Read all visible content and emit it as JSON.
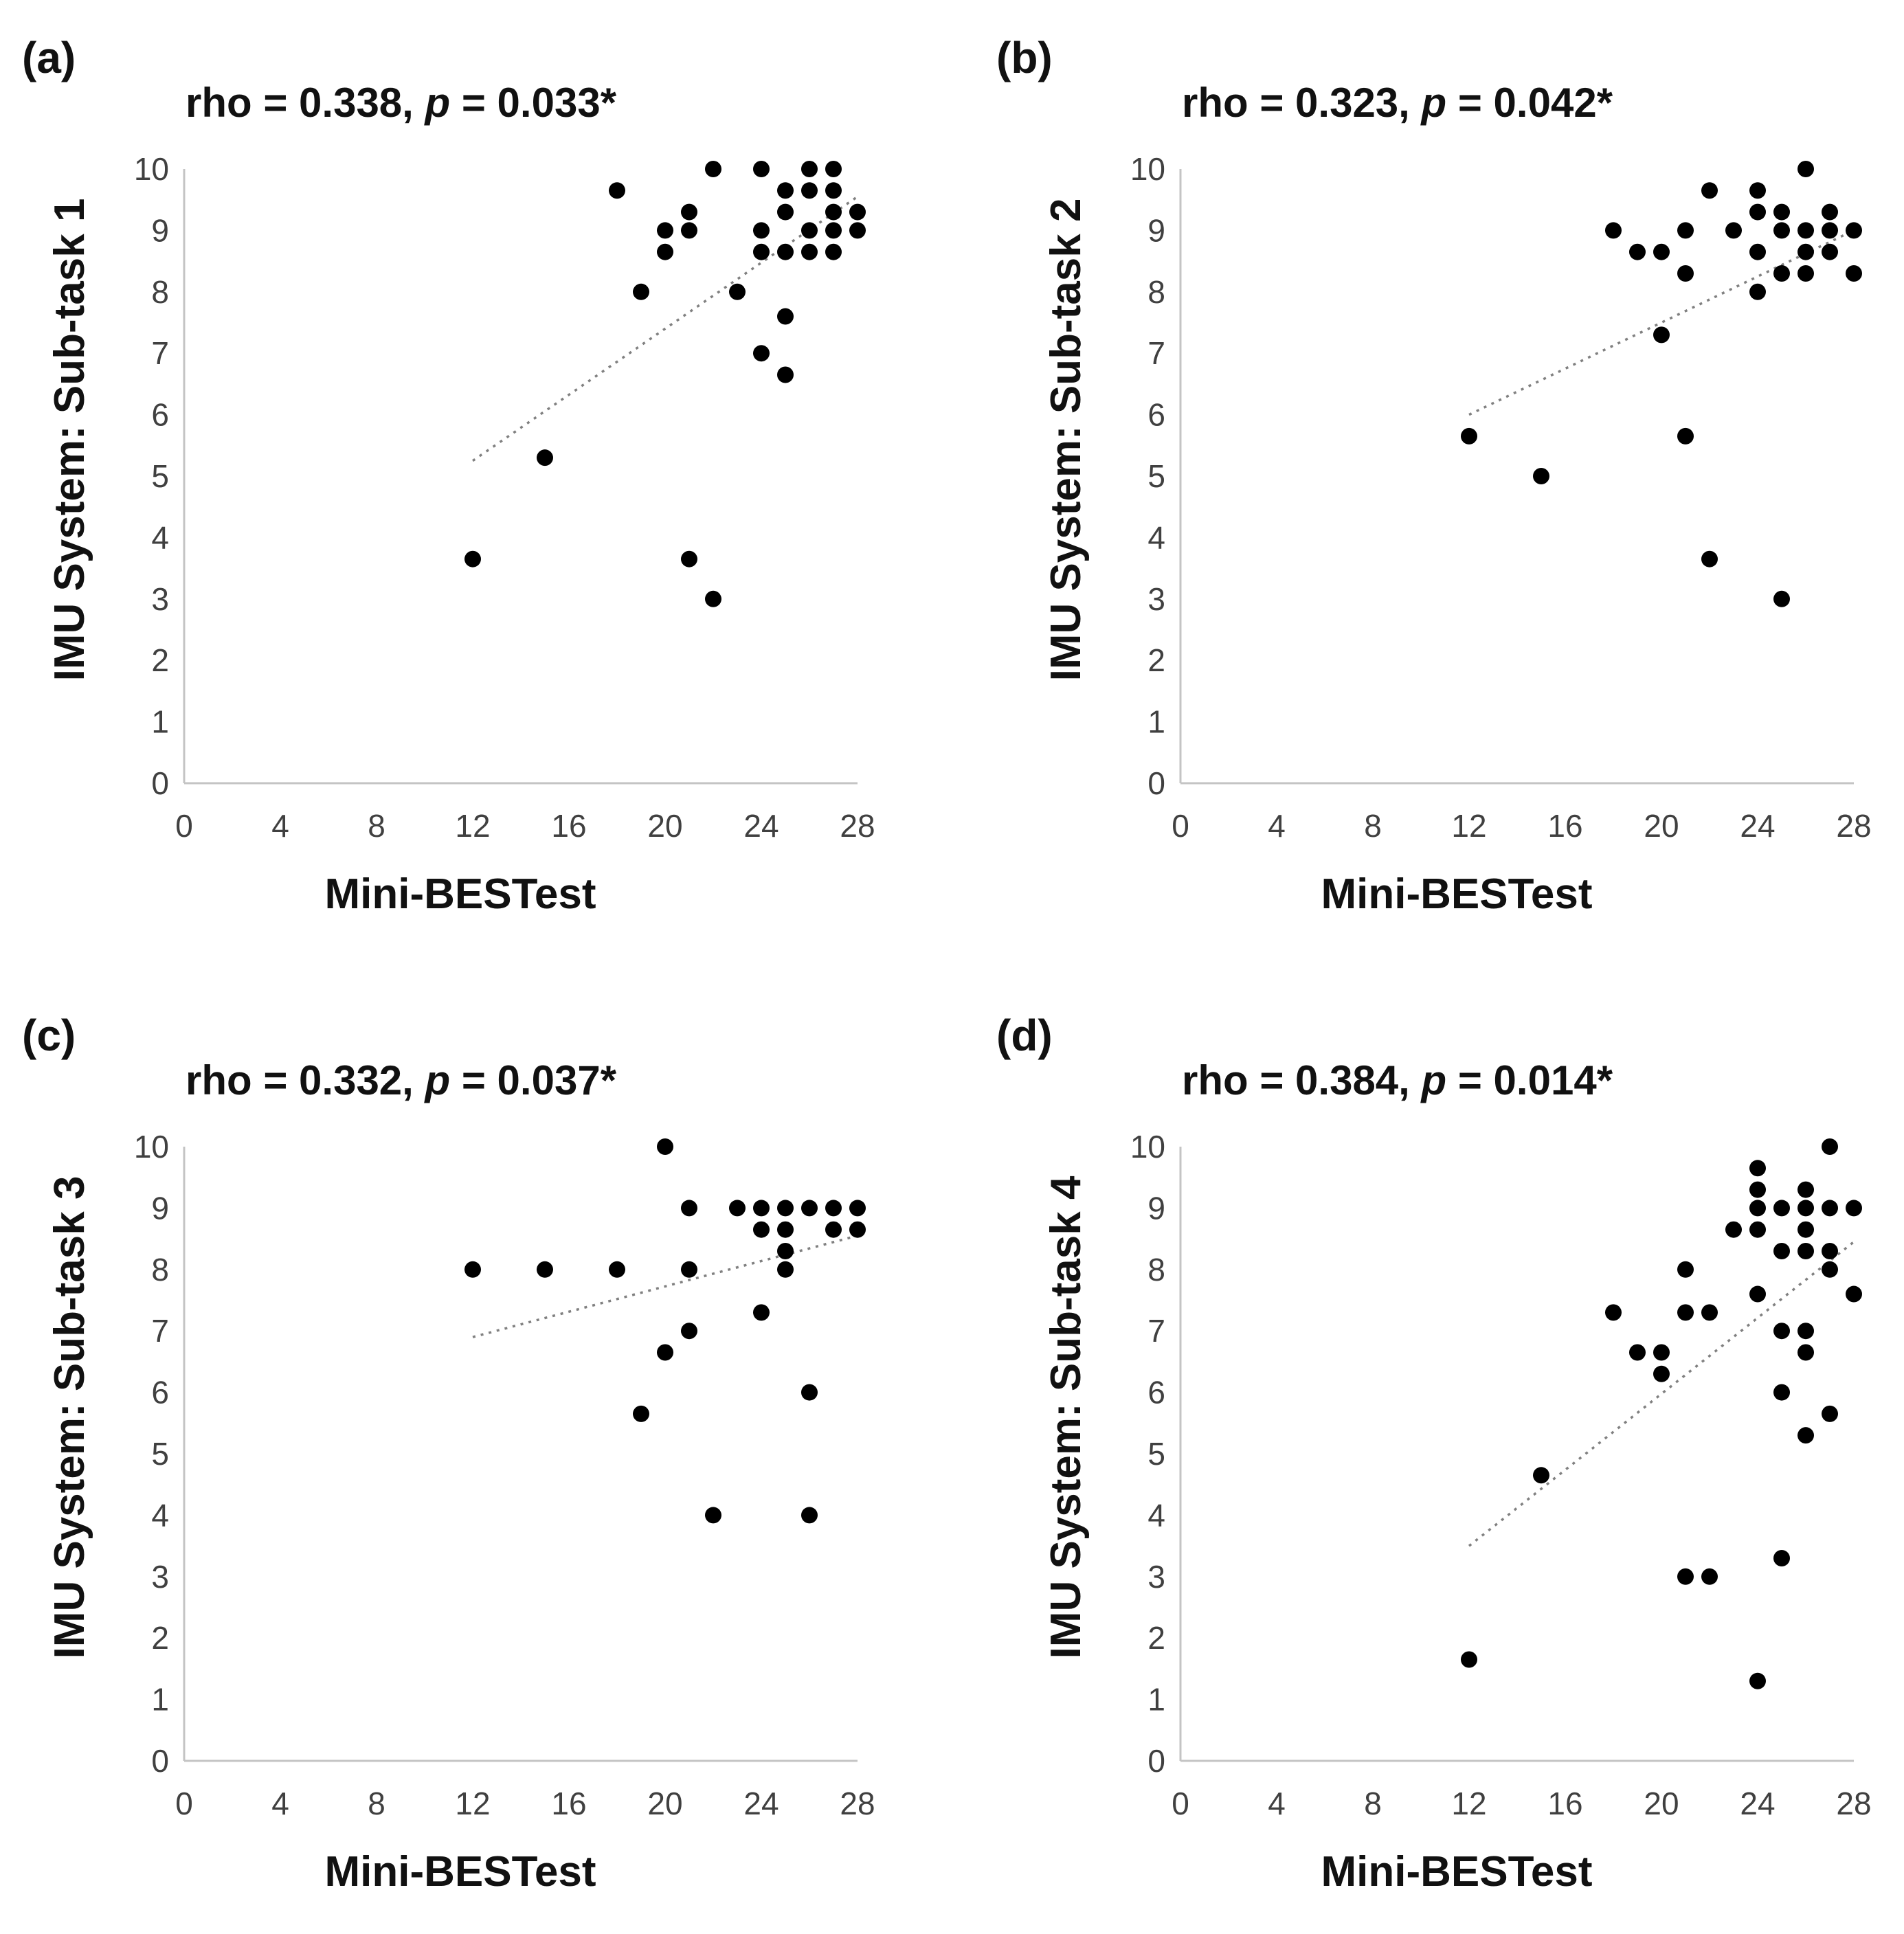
{
  "chart_data": [
    {
      "panel": "(a)",
      "type": "scatter",
      "stat": {
        "rho_text": "rho = 0.338, ",
        "p_symbol": "p",
        "p_text": " = 0.033*"
      },
      "xlabel": "Mini-BESTest",
      "ylabel": "IMU System: Sub-task 1",
      "xlim": [
        0,
        28
      ],
      "ylim": [
        0,
        10
      ],
      "xticks": [
        0,
        4,
        8,
        12,
        16,
        20,
        24,
        28
      ],
      "yticks": [
        0,
        1,
        2,
        3,
        4,
        5,
        6,
        7,
        8,
        9,
        10
      ],
      "trendline": {
        "x": [
          12,
          28
        ],
        "y": [
          5.25,
          9.55
        ]
      },
      "points": [
        [
          12,
          3.65
        ],
        [
          15,
          5.3
        ],
        [
          18,
          9.65
        ],
        [
          19,
          8.0
        ],
        [
          20,
          9.0
        ],
        [
          20,
          8.65
        ],
        [
          21,
          9.3
        ],
        [
          21,
          9.0
        ],
        [
          21,
          3.65
        ],
        [
          22,
          10.0
        ],
        [
          22,
          3.0
        ],
        [
          23,
          8.0
        ],
        [
          24,
          10.0
        ],
        [
          24,
          9.0
        ],
        [
          24,
          8.65
        ],
        [
          24,
          7.0
        ],
        [
          25,
          9.65
        ],
        [
          25,
          9.3
        ],
        [
          25,
          8.65
        ],
        [
          25,
          7.6
        ],
        [
          25,
          6.65
        ],
        [
          26,
          10.0
        ],
        [
          26,
          9.65
        ],
        [
          26,
          9.0
        ],
        [
          26,
          8.65
        ],
        [
          27,
          10.0
        ],
        [
          27,
          9.65
        ],
        [
          27,
          9.3
        ],
        [
          27,
          9.0
        ],
        [
          27,
          8.65
        ],
        [
          28,
          9.3
        ],
        [
          28,
          9.0
        ]
      ]
    },
    {
      "panel": "(b)",
      "type": "scatter",
      "stat": {
        "rho_text": "rho = 0.323, ",
        "p_symbol": "p",
        "p_text": " = 0.042*"
      },
      "xlabel": "Mini-BESTest",
      "ylabel": "IMU System: Sub-task 2",
      "xlim": [
        0,
        28
      ],
      "ylim": [
        0,
        10
      ],
      "xticks": [
        0,
        4,
        8,
        12,
        16,
        20,
        24,
        28
      ],
      "yticks": [
        0,
        1,
        2,
        3,
        4,
        5,
        6,
        7,
        8,
        9,
        10
      ],
      "trendline": {
        "x": [
          12,
          28
        ],
        "y": [
          6.0,
          9.0
        ]
      },
      "points": [
        [
          12,
          5.65
        ],
        [
          15,
          5.0
        ],
        [
          18,
          9.0
        ],
        [
          19,
          8.65
        ],
        [
          20,
          8.65
        ],
        [
          20,
          7.3
        ],
        [
          21,
          9.0
        ],
        [
          21,
          8.3
        ],
        [
          21,
          5.65
        ],
        [
          22,
          9.65
        ],
        [
          22,
          3.65
        ],
        [
          23,
          9.0
        ],
        [
          24,
          9.65
        ],
        [
          24,
          9.3
        ],
        [
          24,
          8.65
        ],
        [
          24,
          8.0
        ],
        [
          25,
          9.3
        ],
        [
          25,
          9.0
        ],
        [
          25,
          8.3
        ],
        [
          25,
          3.0
        ],
        [
          26,
          10.0
        ],
        [
          26,
          9.0
        ],
        [
          26,
          8.65
        ],
        [
          26,
          8.3
        ],
        [
          27,
          9.3
        ],
        [
          27,
          9.0
        ],
        [
          27,
          8.65
        ],
        [
          28,
          9.0
        ],
        [
          28,
          8.3
        ]
      ]
    },
    {
      "panel": "(c)",
      "type": "scatter",
      "stat": {
        "rho_text": "rho = 0.332, ",
        "p_symbol": "p",
        "p_text": " = 0.037*"
      },
      "xlabel": "Mini-BESTest",
      "ylabel": "IMU System: Sub-task 3",
      "xlim": [
        0,
        28
      ],
      "ylim": [
        0,
        10
      ],
      "xticks": [
        0,
        4,
        8,
        12,
        16,
        20,
        24,
        28
      ],
      "yticks": [
        0,
        1,
        2,
        3,
        4,
        5,
        6,
        7,
        8,
        9,
        10
      ],
      "trendline": {
        "x": [
          12,
          28
        ],
        "y": [
          6.9,
          8.55
        ]
      },
      "points": [
        [
          12,
          8.0
        ],
        [
          15,
          8.0
        ],
        [
          18,
          8.0
        ],
        [
          19,
          5.65
        ],
        [
          20,
          10.0
        ],
        [
          20,
          6.65
        ],
        [
          21,
          9.0
        ],
        [
          21,
          8.0
        ],
        [
          21,
          7.0
        ],
        [
          22,
          4.0
        ],
        [
          23,
          9.0
        ],
        [
          24,
          9.0
        ],
        [
          24,
          8.65
        ],
        [
          24,
          7.3
        ],
        [
          25,
          9.0
        ],
        [
          25,
          8.65
        ],
        [
          25,
          8.3
        ],
        [
          25,
          8.0
        ],
        [
          26,
          9.0
        ],
        [
          26,
          6.0
        ],
        [
          26,
          4.0
        ],
        [
          27,
          9.0
        ],
        [
          27,
          8.65
        ],
        [
          28,
          9.0
        ],
        [
          28,
          8.65
        ]
      ]
    },
    {
      "panel": "(d)",
      "type": "scatter",
      "stat": {
        "rho_text": "rho = 0.384, ",
        "p_symbol": "p",
        "p_text": " = 0.014*"
      },
      "xlabel": "Mini-BESTest",
      "ylabel": "IMU System: Sub-task 4",
      "xlim": [
        0,
        28
      ],
      "ylim": [
        0,
        10
      ],
      "xticks": [
        0,
        4,
        8,
        12,
        16,
        20,
        24,
        28
      ],
      "yticks": [
        0,
        1,
        2,
        3,
        4,
        5,
        6,
        7,
        8,
        9,
        10
      ],
      "trendline": {
        "x": [
          12,
          28
        ],
        "y": [
          3.5,
          8.45
        ]
      },
      "points": [
        [
          12,
          1.65
        ],
        [
          15,
          4.65
        ],
        [
          18,
          7.3
        ],
        [
          19,
          6.65
        ],
        [
          20,
          6.65
        ],
        [
          20,
          6.3
        ],
        [
          21,
          8.0
        ],
        [
          21,
          7.3
        ],
        [
          21,
          3.0
        ],
        [
          22,
          7.3
        ],
        [
          22,
          3.0
        ],
        [
          23,
          8.65
        ],
        [
          24,
          9.65
        ],
        [
          24,
          9.3
        ],
        [
          24,
          9.0
        ],
        [
          24,
          8.65
        ],
        [
          24,
          7.6
        ],
        [
          24,
          1.3
        ],
        [
          25,
          9.0
        ],
        [
          25,
          8.3
        ],
        [
          25,
          7.0
        ],
        [
          25,
          6.0
        ],
        [
          25,
          3.3
        ],
        [
          26,
          9.3
        ],
        [
          26,
          9.0
        ],
        [
          26,
          8.65
        ],
        [
          26,
          8.3
        ],
        [
          26,
          7.0
        ],
        [
          26,
          6.65
        ],
        [
          26,
          5.3
        ],
        [
          27,
          10.0
        ],
        [
          27,
          9.0
        ],
        [
          27,
          8.3
        ],
        [
          27,
          8.0
        ],
        [
          27,
          5.65
        ],
        [
          28,
          9.0
        ],
        [
          28,
          7.6
        ]
      ]
    }
  ]
}
